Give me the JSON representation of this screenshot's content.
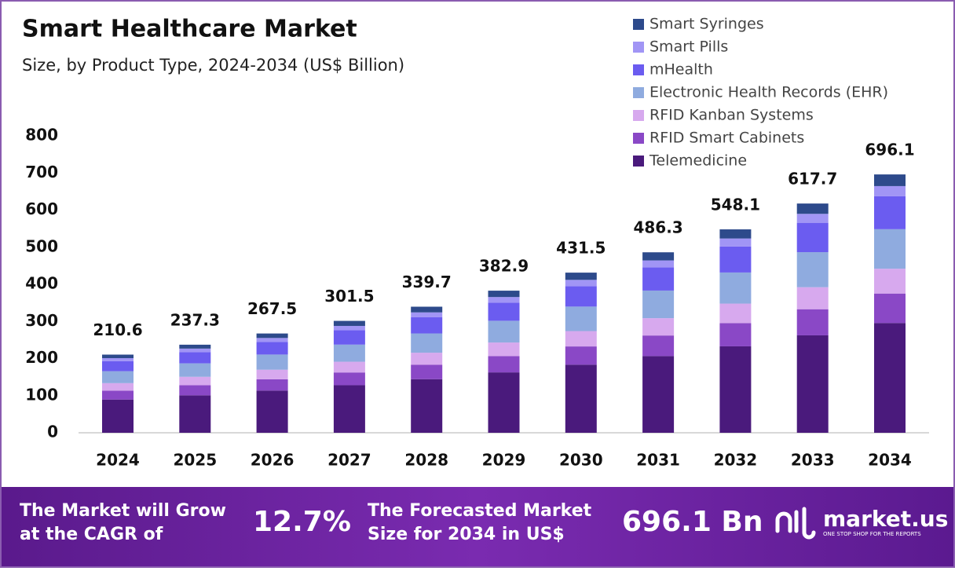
{
  "chart_data": {
    "type": "stacked_bar",
    "title": "Smart Healthcare Market",
    "subtitle": "Size, by Product Type, 2024-2034 (US$ Billion)",
    "categories": [
      "2024",
      "2025",
      "2026",
      "2027",
      "2028",
      "2029",
      "2030",
      "2031",
      "2032",
      "2033",
      "2034"
    ],
    "series": [
      {
        "name": "Telemedicine",
        "color": "#4a1a7c",
        "values": [
          89.5,
          100.9,
          113.7,
          128.1,
          144.4,
          162.7,
          183.4,
          206.7,
          232.9,
          262.5,
          295.8
        ]
      },
      {
        "name": "RFID Smart Cabinets",
        "color": "#8a48c6",
        "values": [
          24.0,
          27.1,
          30.5,
          34.4,
          38.7,
          43.7,
          49.2,
          55.4,
          62.5,
          70.4,
          79.4
        ]
      },
      {
        "name": "RFID Kanban Systems",
        "color": "#d7a9ee",
        "values": [
          20.2,
          22.8,
          25.7,
          28.9,
          32.6,
          36.8,
          41.4,
          46.7,
          52.6,
          59.3,
          66.8
        ]
      },
      {
        "name": "Electronic Health Records (EHR)",
        "color": "#8fabdf",
        "values": [
          32.2,
          36.3,
          40.9,
          46.1,
          52.0,
          58.6,
          66.0,
          74.4,
          83.9,
          94.5,
          106.5
        ]
      },
      {
        "name": "mHealth",
        "color": "#6b5cf0",
        "values": [
          27.0,
          30.4,
          34.2,
          38.6,
          43.5,
          49.0,
          55.2,
          62.2,
          70.2,
          79.1,
          89.1
        ]
      },
      {
        "name": "Smart Pills",
        "color": "#a195f5",
        "values": [
          8.2,
          9.3,
          10.4,
          11.8,
          13.2,
          14.9,
          16.8,
          19.0,
          21.4,
          24.1,
          27.1
        ]
      },
      {
        "name": "Smart Syringes",
        "color": "#2d4a8b",
        "values": [
          9.5,
          10.5,
          12.1,
          13.6,
          15.3,
          17.2,
          19.5,
          21.9,
          24.6,
          27.8,
          31.4
        ]
      }
    ],
    "totals": [
      210.6,
      237.3,
      267.5,
      301.5,
      339.7,
      382.9,
      431.5,
      486.3,
      548.1,
      617.7,
      696.1
    ],
    "ylim": [
      0,
      800
    ],
    "yticks": [
      0,
      100,
      200,
      300,
      400,
      500,
      600,
      700,
      800
    ],
    "grid": false
  },
  "footer": {
    "cagr_text": [
      "The Market will Grow",
      "at the CAGR of"
    ],
    "cagr": "12.7%",
    "forecast_text": [
      "The Forecasted Market",
      "Size for 2034 in US$"
    ],
    "forecast": "696.1 Bn",
    "brand": "market.us",
    "tagline": "ONE STOP SHOP FOR THE REPORTS"
  }
}
